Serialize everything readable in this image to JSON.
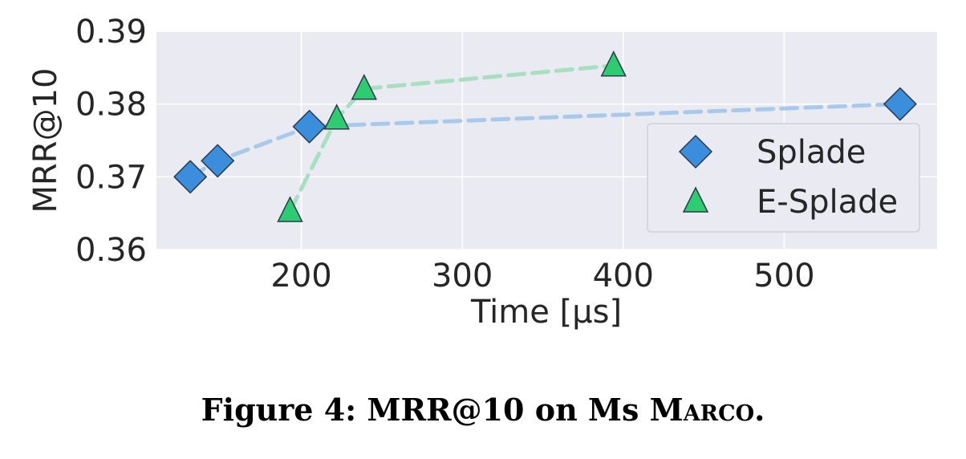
{
  "chart_data": {
    "type": "scatter",
    "xlabel": "Time [μs]",
    "ylabel": "MRR@10",
    "xlim": [
      110,
      595
    ],
    "ylim": [
      0.36,
      0.39
    ],
    "xticks": [
      200,
      300,
      400,
      500
    ],
    "yticks": [
      0.36,
      0.37,
      0.38,
      0.39
    ],
    "xtick_labels": [
      "200",
      "300",
      "400",
      "500"
    ],
    "ytick_labels": [
      "0.36",
      "0.37",
      "0.38",
      "0.39"
    ],
    "grid": true,
    "legend_position": "right",
    "series": [
      {
        "name": "Splade",
        "marker": "diamond",
        "color": "#3a8edb",
        "line_color": "#a9c9ea",
        "x": [
          131,
          148,
          205,
          572
        ],
        "y": [
          0.37,
          0.3722,
          0.3769,
          0.38
        ]
      },
      {
        "name": "E-Splade",
        "marker": "triangle",
        "color": "#2ecc71",
        "line_color": "#a8dfc0",
        "x": [
          193,
          222,
          239,
          394
        ],
        "y": [
          0.3653,
          0.378,
          0.3821,
          0.3853
        ]
      }
    ]
  },
  "caption": {
    "prefix": "Figure 4: MRR@10 on Ms ",
    "smallcaps": "Marco",
    "suffix": "."
  }
}
